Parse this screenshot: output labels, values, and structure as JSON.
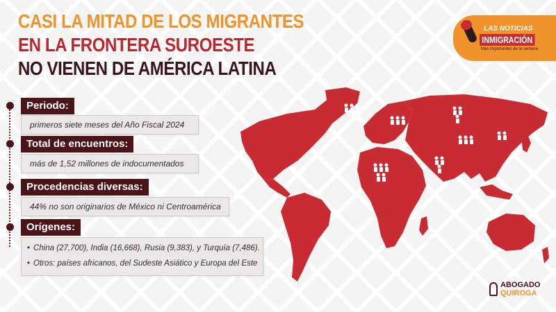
{
  "headline": {
    "line1": "CASI LA MITAD DE LOS MIGRANTES",
    "line2": "EN LA FRONTERA SUROESTE",
    "line3": "NO VIENEN DE AMÉRICA LATINA"
  },
  "brand": {
    "line1": "LAS NOTICIAS",
    "line2": "INMIGRACIÓN",
    "tagline": "Más importantes de la semana"
  },
  "facts": [
    {
      "label": "Periodo:",
      "value": "primeros siete meses del Año Fiscal 2024"
    },
    {
      "label": "Total de encuentros:",
      "value": "más de 1,52 millones de indocumentados"
    },
    {
      "label": "Procedencias diversas:",
      "value": "44% no son originarios de México ni Centroamérica"
    }
  ],
  "origins": {
    "label": "Orígenes:",
    "items": [
      "China (27,700), India (16,668), Rusia (9,383), y Turquía (7,486).",
      "Otros: países africanos, del Sudeste Asiático y Europa del Este"
    ]
  },
  "firm": {
    "name_line1": "ABOGADO",
    "name_line2": "QUIROGA"
  },
  "colors": {
    "orange": "#f0932a",
    "red": "#c92b33",
    "dark": "#4a1418"
  },
  "icons": {
    "map": "world-map-icon",
    "people": "people-group-icon",
    "microphone": "microphone-icon"
  }
}
